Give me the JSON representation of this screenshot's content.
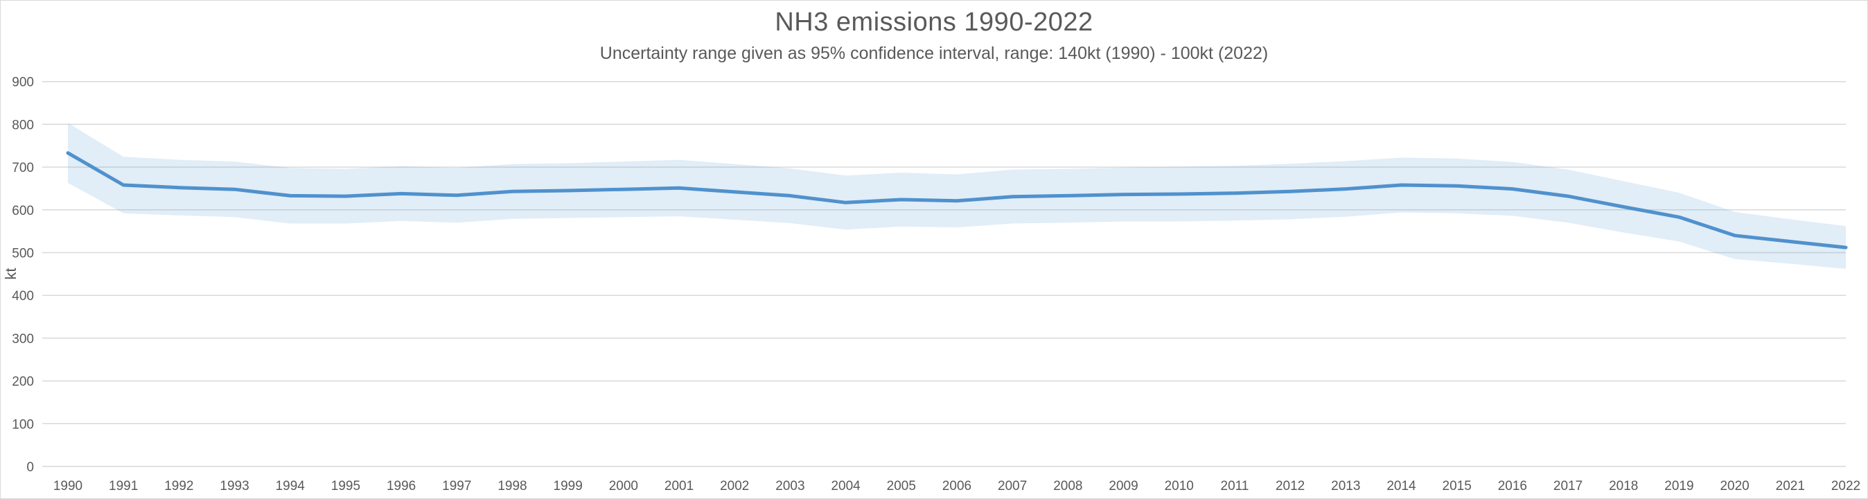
{
  "page": {
    "background": "#ffffff",
    "border_color": "#d9d9d9"
  },
  "header": {
    "title": "NH3 emissions 1990-2022",
    "subtitle": "Uncertainty range given as 95% confidence interval, range: 140kt (1990) - 100kt (2022)"
  },
  "chart_data": {
    "type": "line",
    "title": "NH3 emissions 1990-2022",
    "subtitle": "Uncertainty range given as 95% confidence interval, range: 140kt (1990) - 100kt (2022)",
    "xlabel": "",
    "ylabel": "kt",
    "ylim": [
      0,
      900
    ],
    "y_ticks": [
      0,
      100,
      200,
      300,
      400,
      500,
      600,
      700,
      800,
      900
    ],
    "x": [
      1990,
      1991,
      1992,
      1993,
      1994,
      1995,
      1996,
      1997,
      1998,
      1999,
      2000,
      2001,
      2002,
      2003,
      2004,
      2005,
      2006,
      2007,
      2008,
      2009,
      2010,
      2011,
      2012,
      2013,
      2014,
      2015,
      2016,
      2017,
      2018,
      2019,
      2020,
      2021,
      2022
    ],
    "series": [
      {
        "name": "NH3 emissions",
        "unit": "kt",
        "color": "#4f91cd",
        "values": [
          733,
          658,
          652,
          648,
          633,
          632,
          638,
          634,
          643,
          645,
          648,
          651,
          642,
          633,
          617,
          624,
          621,
          631,
          633,
          636,
          637,
          639,
          643,
          649,
          658,
          656,
          649,
          632,
          607,
          583,
          540,
          526,
          512
        ]
      }
    ],
    "band": {
      "name": "95% confidence interval",
      "fill": "#5b9bd5",
      "fill_opacity": 0.18,
      "upper": [
        803,
        724,
        717,
        713,
        698,
        696,
        702,
        698,
        707,
        709,
        713,
        717,
        707,
        697,
        680,
        687,
        683,
        694,
        696,
        699,
        701,
        703,
        708,
        714,
        722,
        720,
        712,
        694,
        667,
        640,
        595,
        578,
        562
      ],
      "lower": [
        663,
        592,
        587,
        583,
        568,
        568,
        574,
        570,
        579,
        581,
        583,
        585,
        577,
        569,
        554,
        561,
        559,
        568,
        570,
        573,
        573,
        575,
        578,
        584,
        594,
        592,
        586,
        570,
        547,
        526,
        485,
        474,
        462
      ]
    },
    "grid": true,
    "legend_position": "none",
    "colors": {
      "gridline": "#d9d9d9",
      "text": "#595959",
      "line": "#4f91cd"
    },
    "layout": {
      "plot_left": 60,
      "plot_right": 2663,
      "y_of_zero": 672,
      "y_of_max": 116.7,
      "x_first": 97,
      "x_last": 2663
    }
  }
}
